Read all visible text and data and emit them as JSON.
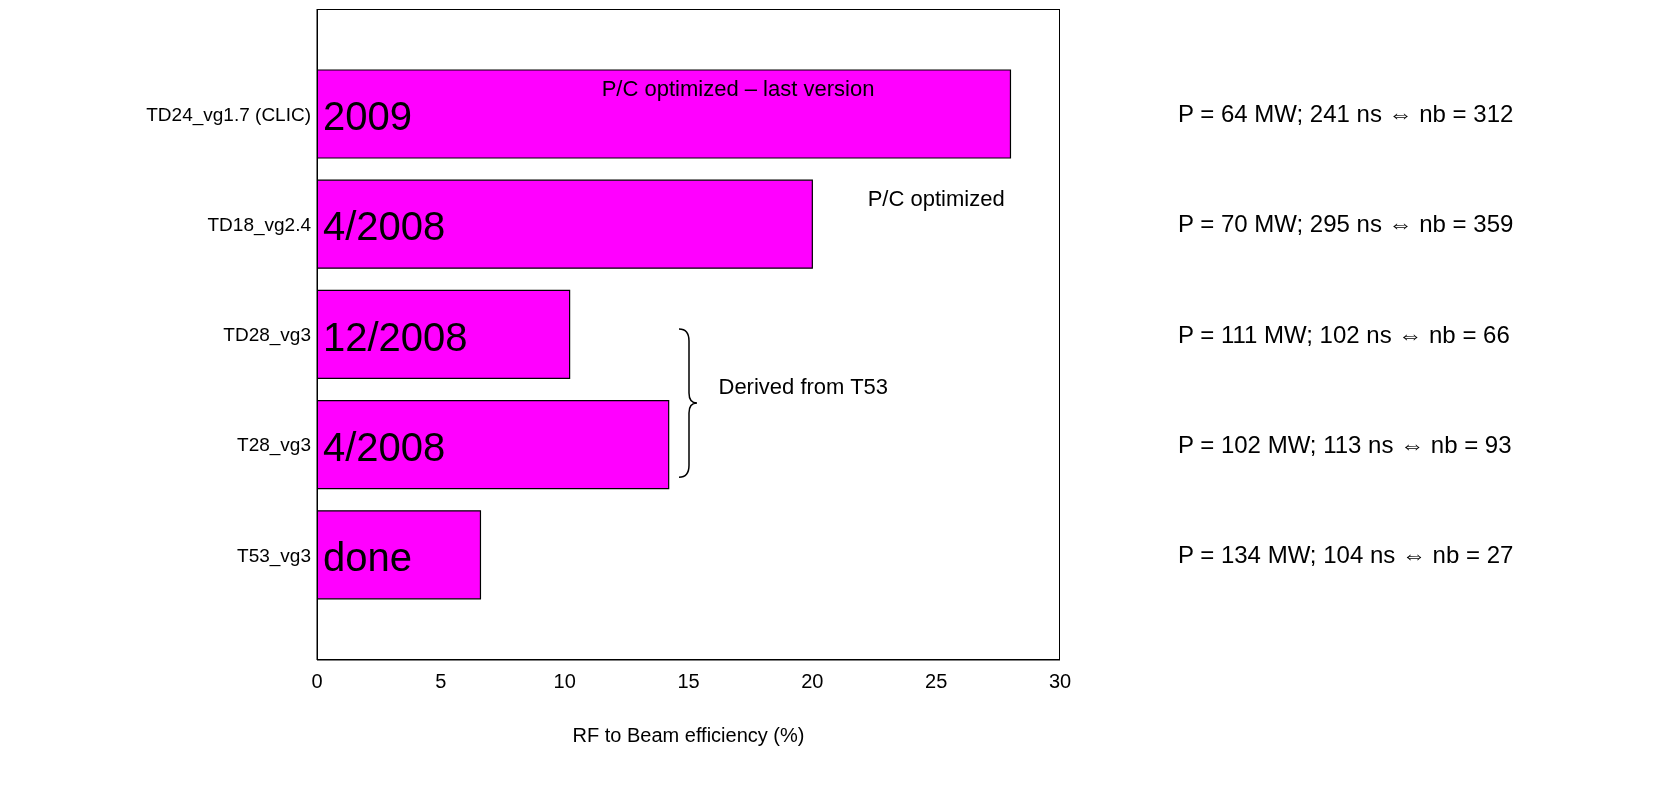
{
  "chart_data": {
    "type": "bar",
    "orientation": "horizontal",
    "xlabel": "RF to Beam efficiency (%)",
    "categories": [
      "TD24_vg1.7 (CLIC)",
      "TD18_vg2.4",
      "TD28_vg3",
      "T28_vg3",
      "T53_vg3"
    ],
    "values": [
      28,
      20,
      10.2,
      14.2,
      6.6
    ],
    "color": "#ff00ff",
    "xlim": [
      0,
      30
    ],
    "xticks": [
      0,
      5,
      10,
      15,
      20,
      25,
      30
    ],
    "grid": false,
    "legend": false,
    "annotations": [
      "2009",
      "4/2008",
      "12/2008",
      "4/2008",
      "done",
      "P/C optimized – last version",
      "P/C optimized",
      "Derived from T53",
      "P = 64 MW; 241 ns ⇔ nb = 312",
      "P = 70 MW; 295 ns ⇔ nb = 359",
      "P = 111 MW; 102 ns ⇔ nb = 66",
      "P = 102 MW; 113 ns ⇔ nb = 93",
      "P = 134 MW; 104 ns ⇔ nb = 27"
    ]
  }
}
